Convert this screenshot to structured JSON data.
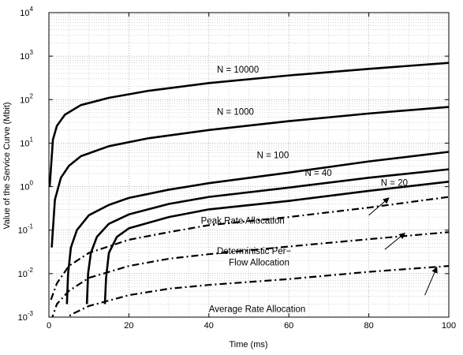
{
  "chart_data": {
    "type": "line",
    "title": "",
    "xlabel": "Time (ms)",
    "ylabel": "Value of the Service Curve (Mbit)",
    "xlim": [
      0,
      100
    ],
    "ylim": [
      0.001,
      10000
    ],
    "yscale": "log",
    "grid": "major and minor, dotted",
    "x_ticks": [
      "0",
      "20",
      "40",
      "60",
      "80",
      "100"
    ],
    "y_ticks": [
      {
        "base": "10",
        "exp": "-3"
      },
      {
        "base": "10",
        "exp": "-2"
      },
      {
        "base": "10",
        "exp": "-1"
      },
      {
        "base": "10",
        "exp": "0"
      },
      {
        "base": "10",
        "exp": "1"
      },
      {
        "base": "10",
        "exp": "2"
      },
      {
        "base": "10",
        "exp": "3"
      },
      {
        "base": "10",
        "exp": "4"
      }
    ],
    "series": [
      {
        "name": "N = 10000",
        "style": "solid",
        "points": [
          [
            0.2,
            1.0
          ],
          [
            1,
            12
          ],
          [
            2,
            25
          ],
          [
            4,
            45
          ],
          [
            8,
            75
          ],
          [
            15,
            110
          ],
          [
            25,
            160
          ],
          [
            40,
            240
          ],
          [
            60,
            360
          ],
          [
            80,
            510
          ],
          [
            100,
            700
          ]
        ]
      },
      {
        "name": "N = 1000",
        "style": "solid",
        "points": [
          [
            0.7,
            0.04
          ],
          [
            1.5,
            0.5
          ],
          [
            3,
            1.6
          ],
          [
            5,
            3.0
          ],
          [
            8,
            5.0
          ],
          [
            15,
            8.5
          ],
          [
            25,
            13
          ],
          [
            40,
            20
          ],
          [
            60,
            32
          ],
          [
            80,
            48
          ],
          [
            100,
            68
          ]
        ]
      },
      {
        "name": "N = 100",
        "style": "solid",
        "points": [
          [
            4.5,
            0.002
          ],
          [
            4.8,
            0.01
          ],
          [
            5.5,
            0.04
          ],
          [
            7,
            0.1
          ],
          [
            10,
            0.22
          ],
          [
            15,
            0.38
          ],
          [
            20,
            0.55
          ],
          [
            30,
            0.85
          ],
          [
            40,
            1.2
          ],
          [
            60,
            2.1
          ],
          [
            80,
            3.8
          ],
          [
            100,
            6.3
          ]
        ]
      },
      {
        "name": "N = 40",
        "style": "solid",
        "points": [
          [
            9.5,
            0.002
          ],
          [
            9.8,
            0.01
          ],
          [
            10.5,
            0.03
          ],
          [
            12,
            0.07
          ],
          [
            15,
            0.14
          ],
          [
            20,
            0.23
          ],
          [
            30,
            0.4
          ],
          [
            40,
            0.58
          ],
          [
            60,
            0.95
          ],
          [
            80,
            1.6
          ],
          [
            100,
            2.5
          ]
        ]
      },
      {
        "name": "N = 20",
        "style": "solid",
        "points": [
          [
            14,
            0.002
          ],
          [
            14.3,
            0.008
          ],
          [
            15,
            0.03
          ],
          [
            17,
            0.07
          ],
          [
            20,
            0.11
          ],
          [
            30,
            0.2
          ],
          [
            40,
            0.3
          ],
          [
            60,
            0.47
          ],
          [
            80,
            0.8
          ],
          [
            100,
            1.3
          ]
        ]
      },
      {
        "name": "Peak Rate Allocation",
        "style": "dash-dot",
        "points": [
          [
            0.5,
            0.0025
          ],
          [
            2,
            0.006
          ],
          [
            5,
            0.015
          ],
          [
            10,
            0.03
          ],
          [
            20,
            0.06
          ],
          [
            30,
            0.09
          ],
          [
            40,
            0.13
          ],
          [
            60,
            0.2
          ],
          [
            80,
            0.33
          ],
          [
            100,
            0.58
          ]
        ]
      },
      {
        "name": "Deterministic Per-Flow Allocation",
        "style": "dash-dot",
        "points": [
          [
            0.5,
            0.0008
          ],
          [
            2,
            0.002
          ],
          [
            5,
            0.004
          ],
          [
            10,
            0.008
          ],
          [
            20,
            0.015
          ],
          [
            30,
            0.022
          ],
          [
            40,
            0.028
          ],
          [
            60,
            0.042
          ],
          [
            80,
            0.062
          ],
          [
            100,
            0.09
          ]
        ]
      },
      {
        "name": "Average Rate Allocation",
        "style": "dash-dot",
        "points": [
          [
            3,
            0.0008
          ],
          [
            6,
            0.0012
          ],
          [
            10,
            0.0018
          ],
          [
            20,
            0.0032
          ],
          [
            30,
            0.0045
          ],
          [
            40,
            0.0055
          ],
          [
            60,
            0.0075
          ],
          [
            80,
            0.011
          ],
          [
            100,
            0.015
          ]
        ]
      }
    ],
    "annotations": [
      {
        "id": "n10000",
        "text": "N = 10000",
        "x": 42,
        "y": 420
      },
      {
        "id": "n1000",
        "text": "N = 1000",
        "x": 42,
        "y": 45
      },
      {
        "id": "n100",
        "text": "N = 100",
        "x": 52,
        "y": 4.5
      },
      {
        "id": "n40",
        "text": "N = 40",
        "x": 64,
        "y": 1.75
      },
      {
        "id": "n20",
        "text": "N = 20",
        "x": 83,
        "y": 1.05
      },
      {
        "id": "peak",
        "text": "Peak Rate Allocation",
        "x": 38,
        "y": 0.14,
        "arrow_from": [
          80,
          0.22
        ],
        "arrow_to": [
          85,
          0.55
        ]
      },
      {
        "id": "det1",
        "text": "Deterministic Per−",
        "x": 42,
        "y": 0.028,
        "arrow_from": [
          84,
          0.036
        ],
        "arrow_to": [
          89,
          0.085
        ]
      },
      {
        "id": "det2",
        "text": "Flow Allocation",
        "x": 45,
        "y": 0.0155
      },
      {
        "id": "avg",
        "text": "Average Rate Allocation",
        "x": 40,
        "y": 0.0013,
        "arrow_from": [
          94,
          0.0032
        ],
        "arrow_to": [
          97,
          0.014
        ]
      }
    ]
  }
}
